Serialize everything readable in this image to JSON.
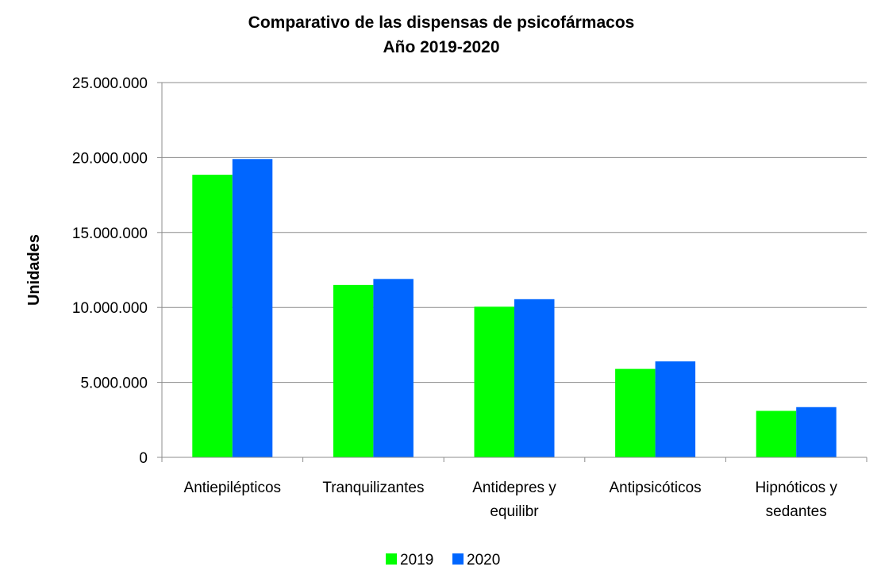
{
  "chart_data": {
    "type": "bar",
    "title": [
      "Comparativo de las dispensas de psicofármacos",
      "Año 2019-2020"
    ],
    "xlabel": "",
    "ylabel": "Unidades",
    "ylim": [
      0,
      25000000
    ],
    "yticks": [
      0,
      5000000,
      10000000,
      15000000,
      20000000,
      25000000
    ],
    "ytick_labels": [
      "0",
      "5.000.000",
      "10.000.000",
      "15.000.000",
      "20.000.000",
      "25.000.000"
    ],
    "categories": [
      [
        "Antiepilépticos"
      ],
      [
        "Tranquilizantes"
      ],
      [
        "Antidepres y",
        "equilibr"
      ],
      [
        "Antipsicóticos"
      ],
      [
        "Hipnóticos y",
        "sedantes"
      ]
    ],
    "series": [
      {
        "name": "2019",
        "color": "#00ff00",
        "values": [
          18850000,
          11500000,
          10050000,
          5900000,
          3100000
        ]
      },
      {
        "name": "2020",
        "color": "#0066ff",
        "values": [
          19900000,
          11900000,
          10550000,
          6400000,
          3350000
        ]
      }
    ],
    "grid": true,
    "legend_position": "bottom"
  }
}
